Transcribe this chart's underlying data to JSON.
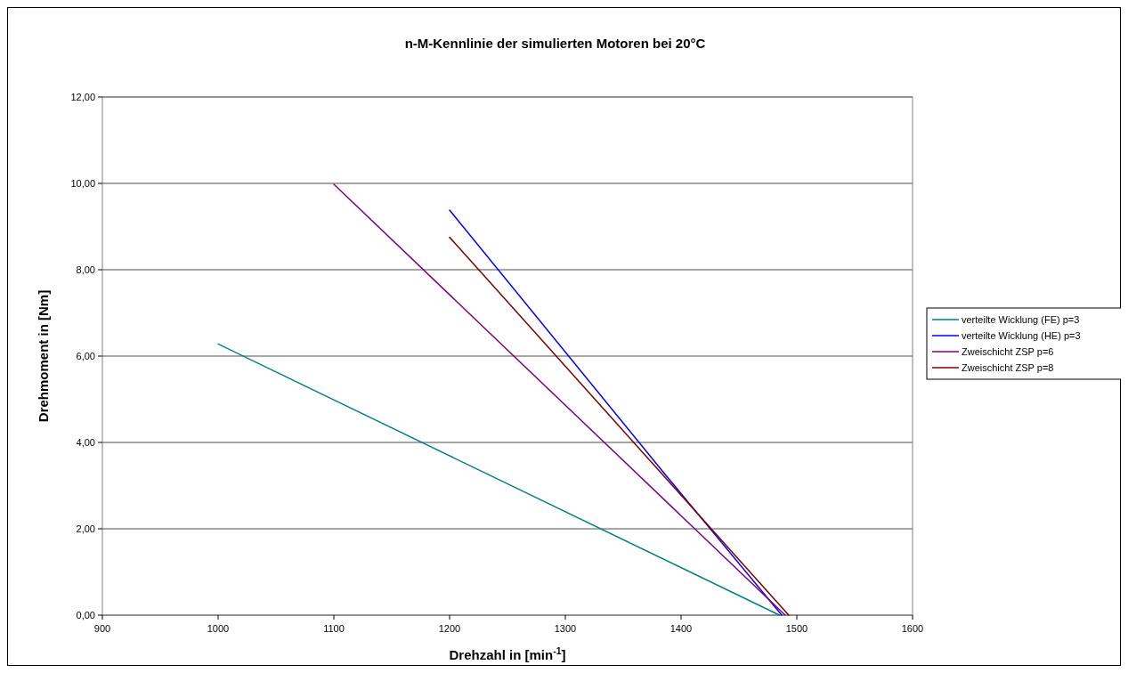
{
  "chart_data": {
    "type": "line",
    "title": "n-M-Kennlinie  der simulierten Motoren bei 20°C",
    "xlabel": "Drehzahl in [min$^{-1}$]",
    "ylabel": "Drehmoment in [Nm]",
    "xlim": [
      900,
      1600
    ],
    "xticks": [
      900,
      1000,
      1100,
      1200,
      1300,
      1400,
      1500,
      1600
    ],
    "ylim": [
      0,
      12
    ],
    "yticks": [
      {
        "value": 0,
        "label": "0,00"
      },
      {
        "value": 2,
        "label": "2,00"
      },
      {
        "value": 4,
        "label": "4,00"
      },
      {
        "value": 6,
        "label": "6,00"
      },
      {
        "value": 8,
        "label": "8,00"
      },
      {
        "value": 10,
        "label": "10,00"
      },
      {
        "value": 12,
        "label": "12,00"
      }
    ],
    "grid": "y",
    "legend": "right",
    "marker": "none",
    "line_style": "solid",
    "series": [
      {
        "name": "verteilte Wicklung (FE) p=3",
        "color": "#008080",
        "x": [
          1000,
          1485
        ],
        "values": [
          6.28,
          0
        ]
      },
      {
        "name": "verteilte Wicklung (HE) p=3",
        "color": "#0000ff",
        "x": [
          1200,
          1385,
          1487
        ],
        "values": [
          9.38,
          3.3,
          0
        ]
      },
      {
        "name": "Zweischicht ZSP p=6",
        "color": "#800080",
        "x": [
          1100,
          1490
        ],
        "values": [
          9.98,
          0
        ]
      },
      {
        "name": "Zweischicht ZSP p=8",
        "color": "#800000",
        "x": [
          1200,
          1493
        ],
        "values": [
          8.75,
          0
        ]
      }
    ]
  }
}
